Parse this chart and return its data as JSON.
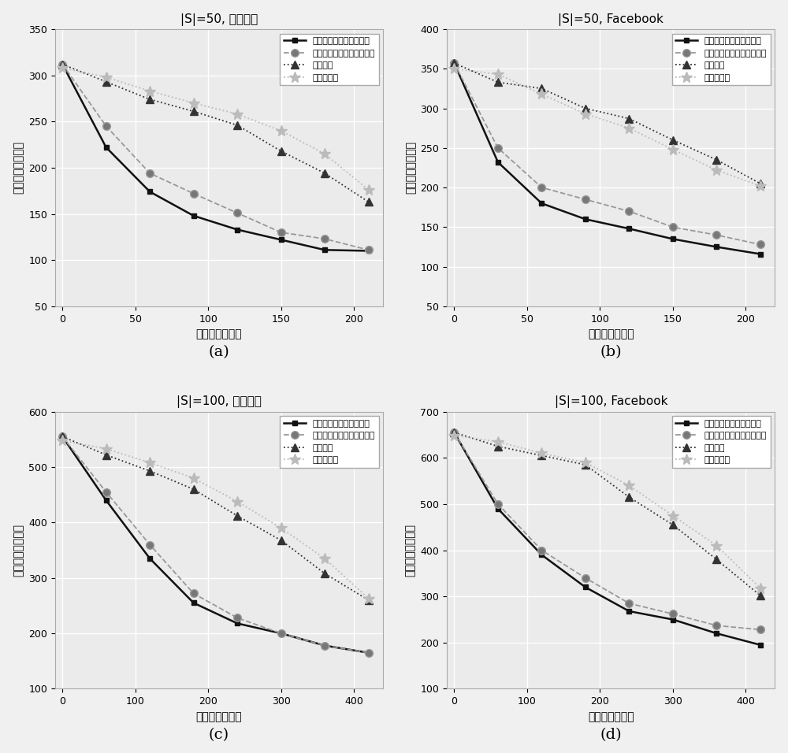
{
  "plots": [
    {
      "title": "|S|=50, 新浪微博",
      "xlabel": "切断的节点数量",
      "ylabel": "负面信息影响范围",
      "ylim": [
        50,
        350
      ],
      "yticks": [
        50,
        100,
        150,
        200,
        250,
        300,
        350
      ],
      "xlim": [
        -5,
        220
      ],
      "xticks": [
        0,
        50,
        100,
        150,
        200
      ],
      "series": [
        {
          "label": "基于话题模型的出度算法",
          "x": [
            0,
            30,
            60,
            90,
            120,
            150,
            180,
            210
          ],
          "y": [
            312,
            222,
            174,
            148,
            133,
            122,
            111,
            110
          ],
          "color": "#111111",
          "linestyle": "-",
          "marker": "s",
          "markersize": 5,
          "linewidth": 1.8,
          "markerfacecolor": "#111111"
        },
        {
          "label": "基于话题模型的中心度算法",
          "x": [
            0,
            30,
            60,
            90,
            120,
            150,
            180,
            210
          ],
          "y": [
            312,
            245,
            194,
            172,
            151,
            130,
            123,
            111
          ],
          "color": "#999999",
          "linestyle": "--",
          "marker": "o",
          "markersize": 7,
          "linewidth": 1.3,
          "markerfacecolor": "#777777"
        },
        {
          "label": "出度算法",
          "x": [
            0,
            30,
            60,
            90,
            120,
            150,
            180,
            210
          ],
          "y": [
            312,
            293,
            274,
            261,
            246,
            218,
            194,
            163
          ],
          "color": "#333333",
          "linestyle": ":",
          "marker": "^",
          "markersize": 7,
          "linewidth": 1.3,
          "markerfacecolor": "#333333"
        },
        {
          "label": "中心度算法",
          "x": [
            0,
            30,
            60,
            90,
            120,
            150,
            180,
            210
          ],
          "y": [
            308,
            298,
            283,
            270,
            258,
            240,
            215,
            176
          ],
          "color": "#bbbbbb",
          "linestyle": ":",
          "marker": "*",
          "markersize": 10,
          "linewidth": 1.3,
          "markerfacecolor": "#bbbbbb"
        }
      ]
    },
    {
      "title": "|S|=50, Facebook",
      "xlabel": "切断的节点数量",
      "ylabel": "负面信息影响范围",
      "ylim": [
        50,
        400
      ],
      "yticks": [
        50,
        100,
        150,
        200,
        250,
        300,
        350,
        400
      ],
      "xlim": [
        -5,
        220
      ],
      "xticks": [
        0,
        50,
        100,
        150,
        200
      ],
      "series": [
        {
          "label": "基于话题模型的出度算法",
          "x": [
            0,
            30,
            60,
            90,
            120,
            150,
            180,
            210
          ],
          "y": [
            357,
            232,
            180,
            160,
            148,
            135,
            125,
            116
          ],
          "color": "#111111",
          "linestyle": "-",
          "marker": "s",
          "markersize": 5,
          "linewidth": 1.8,
          "markerfacecolor": "#111111"
        },
        {
          "label": "基于话题模型的中心度算法",
          "x": [
            0,
            30,
            60,
            90,
            120,
            150,
            180,
            210
          ],
          "y": [
            357,
            250,
            200,
            185,
            170,
            150,
            140,
            128
          ],
          "color": "#999999",
          "linestyle": "--",
          "marker": "o",
          "markersize": 7,
          "linewidth": 1.3,
          "markerfacecolor": "#777777"
        },
        {
          "label": "出度算法",
          "x": [
            0,
            30,
            60,
            90,
            120,
            150,
            180,
            210
          ],
          "y": [
            357,
            333,
            325,
            300,
            287,
            260,
            235,
            205
          ],
          "color": "#333333",
          "linestyle": ":",
          "marker": "^",
          "markersize": 7,
          "linewidth": 1.3,
          "markerfacecolor": "#333333"
        },
        {
          "label": "中心度算法",
          "x": [
            0,
            30,
            60,
            90,
            120,
            150,
            180,
            210
          ],
          "y": [
            350,
            343,
            318,
            293,
            275,
            248,
            222,
            202
          ],
          "color": "#bbbbbb",
          "linestyle": ":",
          "marker": "*",
          "markersize": 10,
          "linewidth": 1.3,
          "markerfacecolor": "#bbbbbb"
        }
      ]
    },
    {
      "title": "|S|=100, 新浪微博",
      "xlabel": "切断的节点数量",
      "ylabel": "负面信息影响范围",
      "ylim": [
        100,
        600
      ],
      "yticks": [
        100,
        200,
        300,
        400,
        500,
        600
      ],
      "xlim": [
        -10,
        440
      ],
      "xticks": [
        0,
        100,
        200,
        300,
        400
      ],
      "series": [
        {
          "label": "基于话题模型的出度算法",
          "x": [
            0,
            60,
            120,
            180,
            240,
            300,
            360,
            420
          ],
          "y": [
            555,
            440,
            335,
            255,
            218,
            200,
            178,
            165
          ],
          "color": "#111111",
          "linestyle": "-",
          "marker": "s",
          "markersize": 5,
          "linewidth": 1.8,
          "markerfacecolor": "#111111"
        },
        {
          "label": "基于话题模型的中心度算法",
          "x": [
            0,
            60,
            120,
            180,
            240,
            300,
            360,
            420
          ],
          "y": [
            555,
            455,
            360,
            272,
            228,
            200,
            178,
            165
          ],
          "color": "#999999",
          "linestyle": "--",
          "marker": "o",
          "markersize": 7,
          "linewidth": 1.3,
          "markerfacecolor": "#777777"
        },
        {
          "label": "出度算法",
          "x": [
            0,
            60,
            120,
            180,
            240,
            300,
            360,
            420
          ],
          "y": [
            555,
            522,
            493,
            460,
            412,
            368,
            308,
            260
          ],
          "color": "#333333",
          "linestyle": ":",
          "marker": "^",
          "markersize": 7,
          "linewidth": 1.3,
          "markerfacecolor": "#333333"
        },
        {
          "label": "中心度算法",
          "x": [
            0,
            60,
            120,
            180,
            240,
            300,
            360,
            420
          ],
          "y": [
            548,
            533,
            508,
            480,
            438,
            390,
            335,
            263
          ],
          "color": "#bbbbbb",
          "linestyle": ":",
          "marker": "*",
          "markersize": 10,
          "linewidth": 1.3,
          "markerfacecolor": "#bbbbbb"
        }
      ]
    },
    {
      "title": "|S|=100, Facebook",
      "xlabel": "切断的节点数量",
      "ylabel": "负面信息影响范围",
      "ylim": [
        100,
        700
      ],
      "yticks": [
        100,
        200,
        300,
        400,
        500,
        600,
        700
      ],
      "xlim": [
        -10,
        440
      ],
      "xticks": [
        0,
        100,
        200,
        300,
        400
      ],
      "series": [
        {
          "label": "基于话题模型的出度算法",
          "x": [
            0,
            60,
            120,
            180,
            240,
            300,
            360,
            420
          ],
          "y": [
            655,
            490,
            390,
            320,
            268,
            250,
            220,
            195
          ],
          "color": "#111111",
          "linestyle": "-",
          "marker": "s",
          "markersize": 5,
          "linewidth": 1.8,
          "markerfacecolor": "#111111"
        },
        {
          "label": "基于话题模型的中心度算法",
          "x": [
            0,
            60,
            120,
            180,
            240,
            300,
            360,
            420
          ],
          "y": [
            655,
            500,
            400,
            340,
            285,
            262,
            237,
            228
          ],
          "color": "#999999",
          "linestyle": "--",
          "marker": "o",
          "markersize": 7,
          "linewidth": 1.3,
          "markerfacecolor": "#777777"
        },
        {
          "label": "出度算法",
          "x": [
            0,
            60,
            120,
            180,
            240,
            300,
            360,
            420
          ],
          "y": [
            655,
            625,
            605,
            585,
            515,
            455,
            380,
            302
          ],
          "color": "#333333",
          "linestyle": ":",
          "marker": "^",
          "markersize": 7,
          "linewidth": 1.3,
          "markerfacecolor": "#333333"
        },
        {
          "label": "中心度算法",
          "x": [
            0,
            60,
            120,
            180,
            240,
            300,
            360,
            420
          ],
          "y": [
            648,
            635,
            610,
            590,
            540,
            475,
            410,
            318
          ],
          "color": "#bbbbbb",
          "linestyle": ":",
          "marker": "*",
          "markersize": 10,
          "linewidth": 1.3,
          "markerfacecolor": "#bbbbbb"
        }
      ]
    }
  ],
  "subplot_labels": [
    "(a)",
    "(b)",
    "(c)",
    "(d)"
  ],
  "plot_bg_color": "#ebebeb",
  "fig_bg_color": "#f0f0f0",
  "grid_color": "#ffffff",
  "font_size": 10,
  "title_font_size": 11,
  "label_font_size": 14
}
